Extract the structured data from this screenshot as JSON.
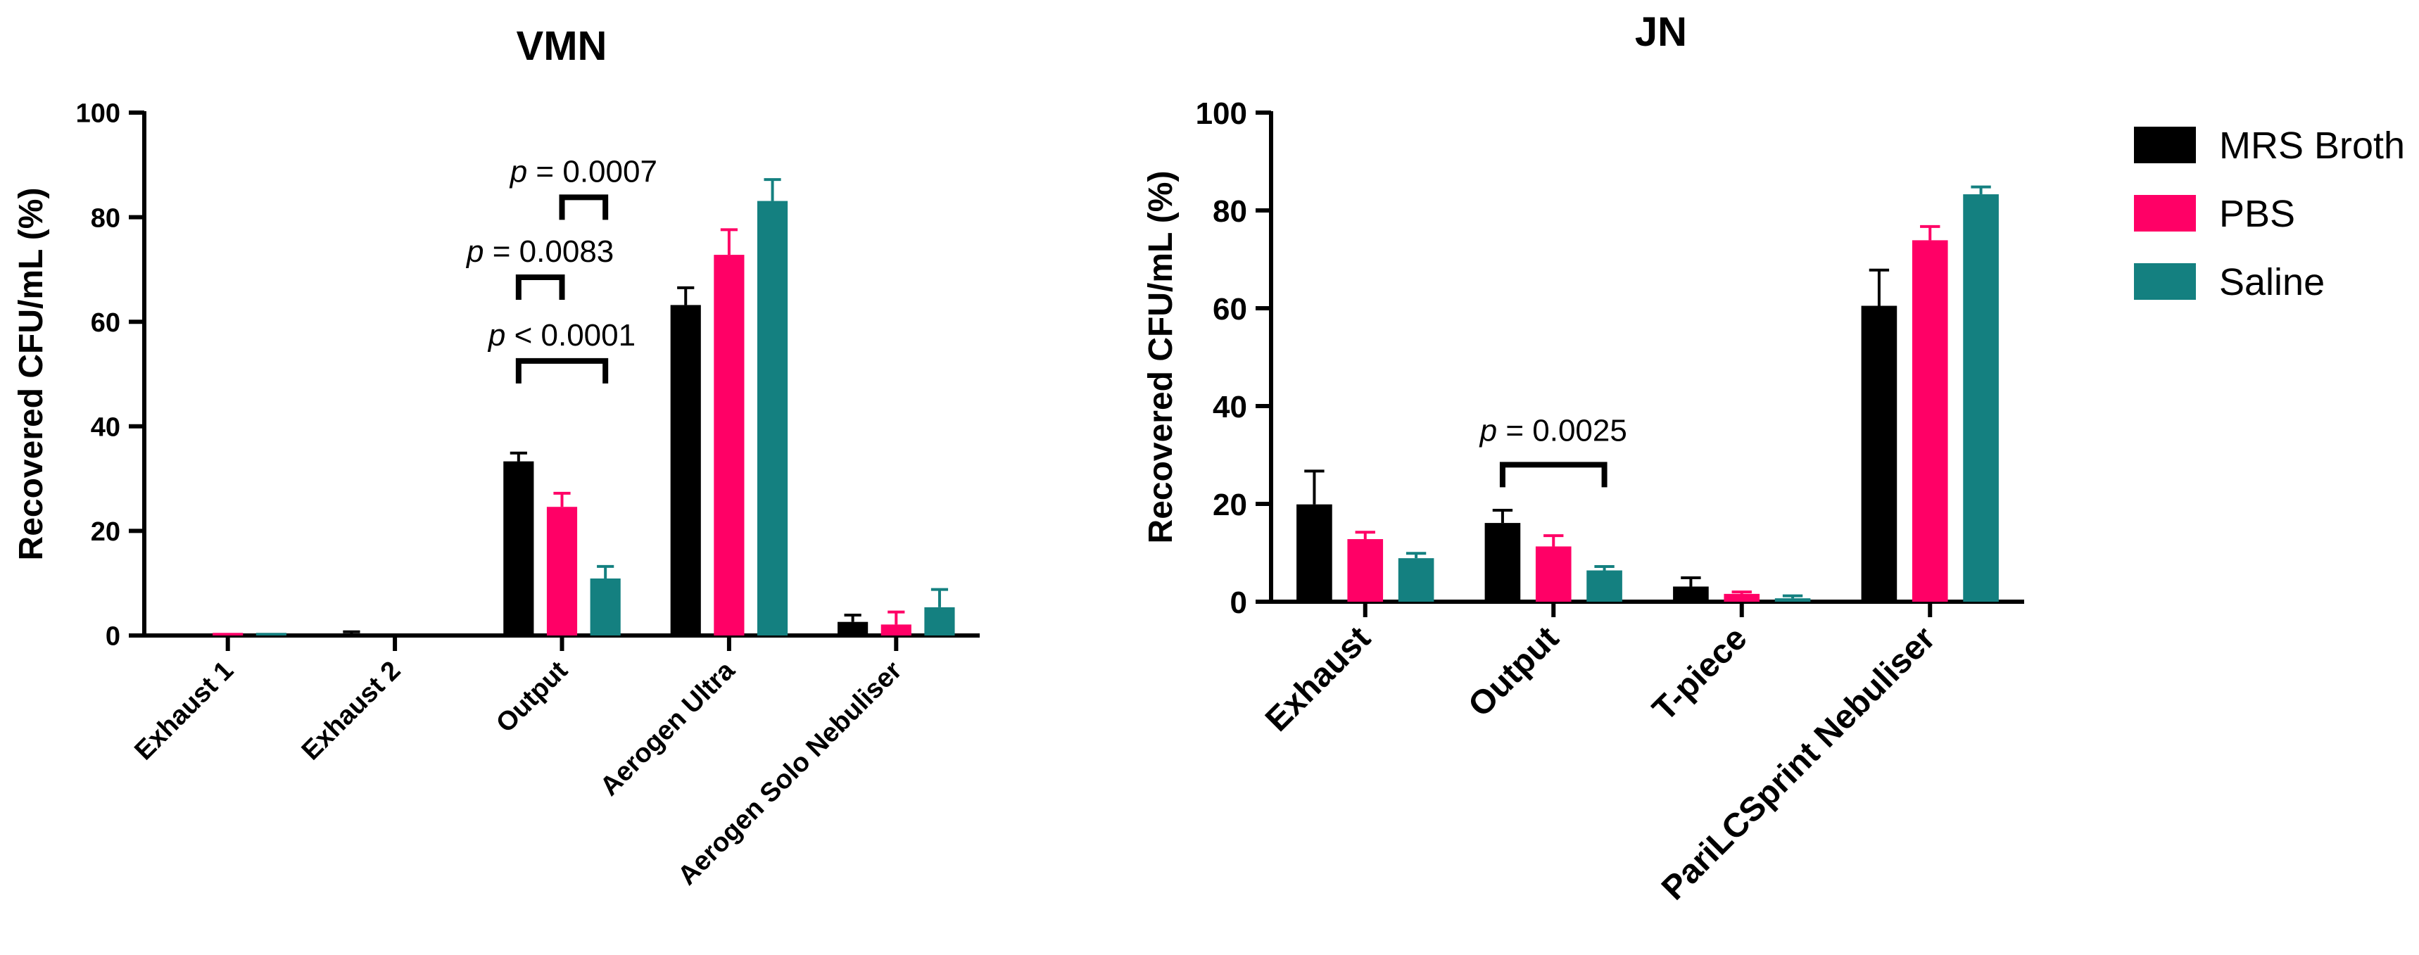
{
  "colors": {
    "mrs": "#000000",
    "pbs": "#ff0066",
    "saline": "#148080"
  },
  "legend": {
    "items": [
      {
        "label": "MRS Broth",
        "color": "#000000"
      },
      {
        "label": "PBS",
        "color": "#ff0066"
      },
      {
        "label": "Saline",
        "color": "#148080"
      }
    ]
  },
  "chart_data": [
    {
      "type": "bar",
      "title": "VMN",
      "ylabel": "Recovered CFU/mL (%)",
      "xlabel": "",
      "ylim": [
        0,
        100
      ],
      "yticks": [
        0,
        20,
        40,
        60,
        80,
        100
      ],
      "categories": [
        "Exhaust 1",
        "Exhaust 2",
        "Output",
        "Aerogen Ultra",
        "Aerogen Solo Nebuliser"
      ],
      "series": [
        {
          "name": "MRS Broth",
          "values": [
            0,
            0,
            33.3,
            63.2,
            2.6
          ],
          "errors": [
            0,
            0.7,
            1.6,
            3.3,
            1.3
          ]
        },
        {
          "name": "PBS",
          "values": [
            0.5,
            0,
            24.6,
            72.8,
            2.1
          ],
          "errors": [
            0,
            0,
            2.6,
            4.8,
            2.4
          ]
        },
        {
          "name": "Saline",
          "values": [
            0.5,
            0,
            10.9,
            83.1,
            5.4
          ],
          "errors": [
            0,
            0,
            2.3,
            4.1,
            3.4
          ]
        }
      ],
      "annotations": [
        {
          "text_prefix": "p",
          "text": " = 0.0007",
          "from_series": 1,
          "to_series": 2,
          "category": "Output",
          "level": 83.8
        },
        {
          "text_prefix": "p",
          "text": " = 0.0083",
          "from_series": 0,
          "to_series": 1,
          "category": "Output",
          "level": 68.5
        },
        {
          "text_prefix": "p",
          "text": " < 0.0001",
          "from_series": 0,
          "to_series": 2,
          "category": "Output",
          "level": 52.5
        }
      ]
    },
    {
      "type": "bar",
      "title": "JN",
      "ylabel": "Recovered CFU/mL (%)",
      "xlabel": "",
      "ylim": [
        0,
        100
      ],
      "yticks": [
        0,
        20,
        40,
        60,
        80,
        100
      ],
      "categories": [
        "Exhaust",
        "Output",
        "T-piece",
        "PariLCSprint Nebuliser"
      ],
      "series": [
        {
          "name": "MRS Broth",
          "values": [
            19.9,
            16.1,
            3.1,
            60.5
          ],
          "errors": [
            6.8,
            2.6,
            1.8,
            7.3
          ]
        },
        {
          "name": "PBS",
          "values": [
            12.8,
            11.3,
            1.6,
            73.9
          ],
          "errors": [
            1.4,
            2.2,
            0.4,
            2.8
          ]
        },
        {
          "name": "Saline",
          "values": [
            8.9,
            6.4,
            0.7,
            83.3
          ],
          "errors": [
            1.0,
            0.8,
            0.5,
            1.5
          ]
        }
      ],
      "annotations": [
        {
          "text_prefix": "p",
          "text": " = 0.0025",
          "from_series": 0,
          "to_series": 2,
          "category": "Output",
          "level": 28.0
        }
      ]
    }
  ]
}
